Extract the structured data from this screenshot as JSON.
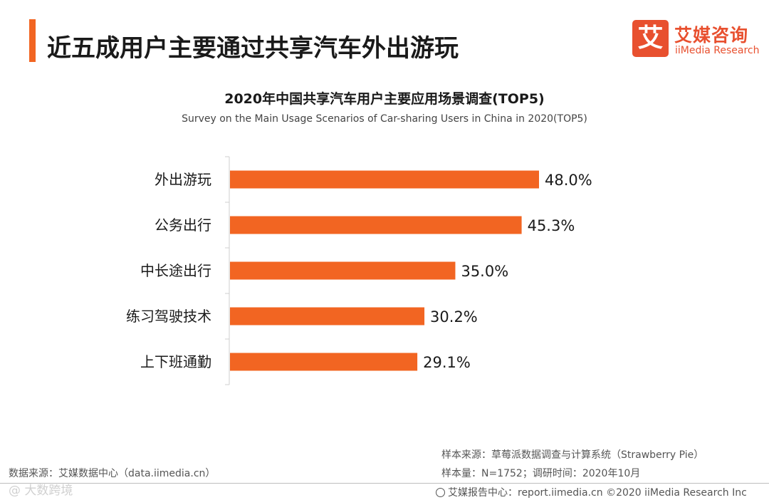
{
  "header": {
    "title": "近五成用户主要通过共享汽车外出游玩",
    "accent_color": "#f26522"
  },
  "logo": {
    "mark": "艾",
    "name_cn": "艾媒咨询",
    "name_en": "iiMedia Research",
    "color": "#e8502f"
  },
  "chart_data": {
    "type": "bar",
    "orientation": "horizontal",
    "title": "2020年中国共享汽车用户主要应用场景调查(TOP5)",
    "subtitle": "Survey on the Main Usage Scenarios of Car-sharing Users in China in 2020(TOP5)",
    "categories": [
      "外出游玩",
      "公务出行",
      "中长途出行",
      "练习驾驶技术",
      "上下班通勤"
    ],
    "values": [
      48.0,
      45.3,
      35.0,
      30.2,
      29.1
    ],
    "value_labels": [
      "48.0%",
      "45.3%",
      "35.0%",
      "30.2%",
      "29.1%"
    ],
    "xlim": [
      0,
      48.0
    ],
    "bar_color": "#f26522",
    "xlabel": "",
    "ylabel": ""
  },
  "footer": {
    "source_left": "数据来源：艾媒数据中心（data.iimedia.cn）",
    "sample_source": "样本来源：草莓派数据调查与计算系统（Strawberry Pie）",
    "sample_size": "样本量：N=1752；调研时间：2020年10月",
    "copyright": "艾媒报告中心：report.iimedia.cn ©2020  iiMedia Research  Inc",
    "watermark": "@ 大数跨境"
  }
}
